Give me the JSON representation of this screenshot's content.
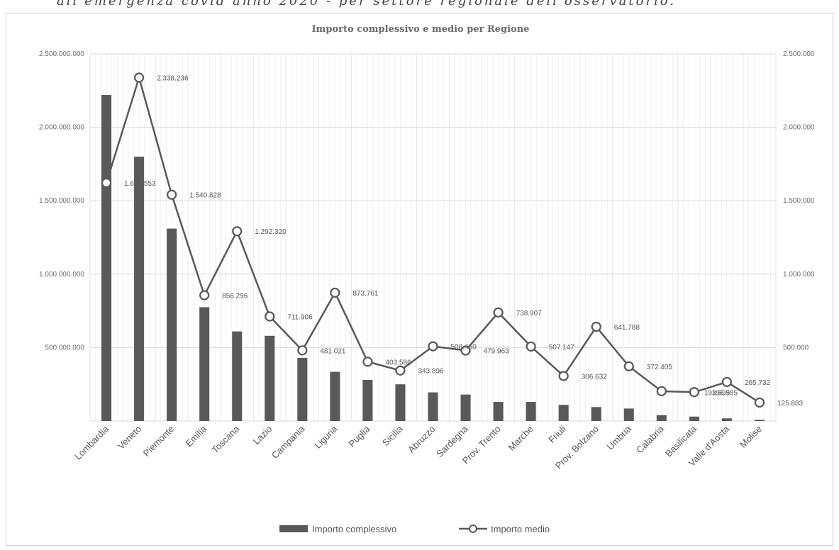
{
  "header": {
    "clipped_text": "all'emergenza covid anno 2020 - per settore regionale dell'osservatorio."
  },
  "chart_data": {
    "type": "bar",
    "title": "Importo complessivo e medio per Regione",
    "categories": [
      "Lombardia",
      "Veneto",
      "Piemonte",
      "Emilia",
      "Toscana",
      "Lazio",
      "Campania",
      "Liguria",
      "Puglia",
      "Sicilia",
      "Abruzzo",
      "Sardegna",
      "Prov. Trento",
      "Marche",
      "Friuli",
      "Prov. Bolzano",
      "Umbria",
      "Calabria",
      "Basilicata",
      "Valle d'Aosta",
      "Molise"
    ],
    "series": [
      {
        "name": "Importo complessivo",
        "type": "bar",
        "axis": "left",
        "color": "#595959",
        "values": [
          2220000000,
          1800000000,
          1310000000,
          775000000,
          610000000,
          580000000,
          430000000,
          335000000,
          280000000,
          250000000,
          195000000,
          180000000,
          130000000,
          130000000,
          110000000,
          95000000,
          85000000,
          40000000,
          30000000,
          18000000,
          8000000
        ]
      },
      {
        "name": "Importo medio",
        "type": "line",
        "axis": "right",
        "color": "#595959",
        "values": [
          1621553,
          2338236,
          1540828,
          856296,
          1292320,
          711906,
          481021,
          873761,
          403586,
          343896,
          508460,
          479963,
          738907,
          507147,
          306632,
          641788,
          372405,
          203000,
          196585,
          265732,
          125883
        ],
        "labels": [
          "1.621.553",
          "2.338.236",
          "1.540.828",
          "856.296",
          "1.292.320",
          "711.906",
          "481.021",
          "873.761",
          "403.586",
          "343.896",
          "508.460",
          "479.963",
          "738.907",
          "507.147",
          "306.632",
          "641.788",
          "372.405",
          "",
          "196.585",
          "265.732",
          "125.883"
        ],
        "extra_label": "193.699"
      }
    ],
    "left_axis": {
      "min": 0,
      "max": 2500000000,
      "ticks": [
        "",
        "500.000.000",
        "1.000.000.000",
        "1.500.000.000",
        "2.000.000.000",
        "2.500.000.000"
      ]
    },
    "right_axis": {
      "min": 0,
      "max": 2500000,
      "ticks": [
        "",
        "500.000",
        "1.000.000",
        "1.500.000",
        "2.000.000",
        "2.500.000"
      ]
    },
    "grid": true,
    "legend_position": "bottom"
  }
}
